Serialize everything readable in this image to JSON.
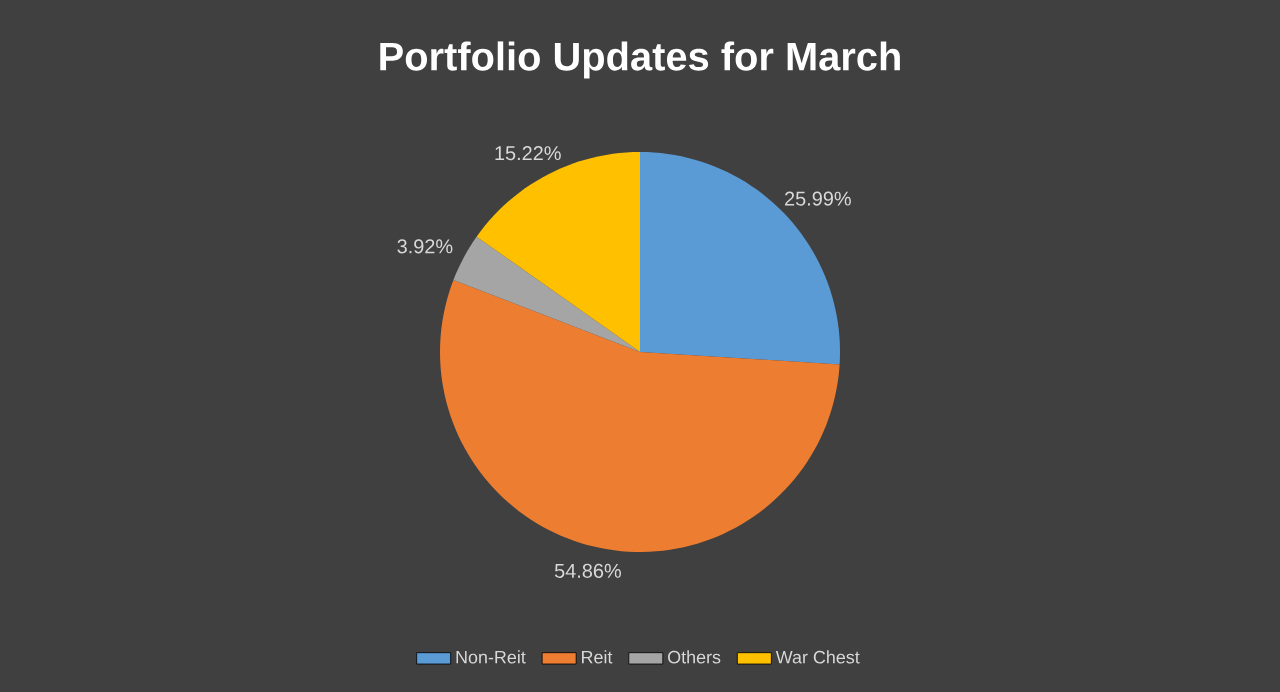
{
  "chart_data": {
    "type": "pie",
    "title": "Portfolio Updates for March",
    "categories": [
      "Non-Reit",
      "Reit",
      "Others",
      "War Chest"
    ],
    "values": [
      25.99,
      54.86,
      3.92,
      15.22
    ],
    "colors": [
      "#5b9bd5",
      "#ed7d31",
      "#a5a5a5",
      "#ffc000"
    ],
    "value_labels": [
      "25.99%",
      "54.86%",
      "3.92%",
      "15.22%"
    ],
    "legend": "bottom"
  }
}
